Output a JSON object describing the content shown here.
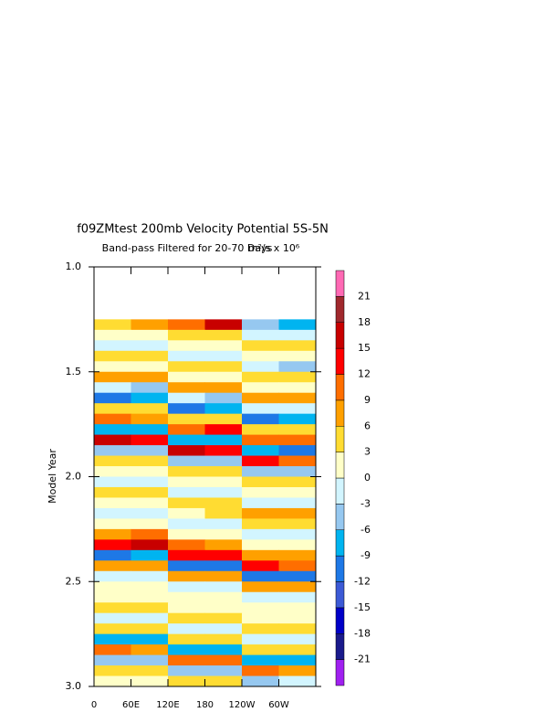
{
  "chart_data": {
    "type": "contour",
    "title": "f09ZMtest 200mb Velocity Potential 5S-5N",
    "subtitle": "Band-pass Filtered for 20-70 Days",
    "units": "m²/s x 10⁶",
    "ylabel": "Model Year",
    "xlim": [
      0,
      360
    ],
    "ylim": [
      1,
      3
    ],
    "y_inverted": true,
    "xticks": [
      0,
      {
        "value": 60,
        "label": "60E"
      },
      {
        "value": 120,
        "label": "120E"
      },
      180,
      {
        "value": 240,
        "label": "120W"
      },
      {
        "value": 300,
        "label": "60W"
      }
    ],
    "yticks": [
      {
        "value": 1,
        "label": "1.0"
      },
      {
        "value": 1.5,
        "label": "1.5"
      },
      {
        "value": 2,
        "label": "2.0"
      },
      {
        "value": 2.5,
        "label": "2.5"
      },
      {
        "value": 3,
        "label": "3.0"
      }
    ],
    "levels": [
      -21,
      -18,
      -15,
      -12,
      -9,
      -6,
      -3,
      0,
      3,
      6,
      9,
      12,
      15,
      18,
      21
    ],
    "colors": [
      "#a020f0",
      "#1a1a8c",
      "#0000c8",
      "#3c5ad6",
      "#1e78e6",
      "#00b4f0",
      "#96c8f0",
      "#d2f5ff",
      "#ffffc8",
      "#ffdc32",
      "#ffa000",
      "#ff6e00",
      "#ff0000",
      "#c80000",
      "#a0282d",
      "#ff69b4"
    ],
    "x": [
      30,
      90,
      150,
      210,
      270,
      330
    ],
    "y": [
      1.275,
      1.325,
      1.375,
      1.425,
      1.475,
      1.525,
      1.575,
      1.625,
      1.675,
      1.725,
      1.775,
      1.825,
      1.875,
      1.925,
      1.975,
      2.025,
      2.075,
      2.125,
      2.175,
      2.225,
      2.275,
      2.325,
      2.375,
      2.425,
      2.475,
      2.525,
      2.575,
      2.625,
      2.675,
      2.725,
      2.775,
      2.825,
      2.875,
      2.925,
      2.975
    ],
    "z": [
      [
        3,
        6,
        9,
        15,
        -6,
        -9
      ],
      [
        0,
        0,
        3,
        3,
        -3,
        -3
      ],
      [
        -3,
        -3,
        0,
        0,
        3,
        3
      ],
      [
        3,
        3,
        -3,
        -3,
        0,
        0
      ],
      [
        0,
        0,
        3,
        3,
        -3,
        -6
      ],
      [
        6,
        6,
        0,
        0,
        3,
        3
      ],
      [
        -3,
        -6,
        6,
        6,
        0,
        0
      ],
      [
        -12,
        -9,
        -3,
        -6,
        6,
        6
      ],
      [
        3,
        3,
        -12,
        -9,
        -3,
        -3
      ],
      [
        9,
        6,
        3,
        3,
        -12,
        -9
      ],
      [
        -9,
        -9,
        9,
        12,
        3,
        3
      ],
      [
        15,
        12,
        -9,
        -9,
        9,
        9
      ],
      [
        -6,
        -6,
        15,
        12,
        -9,
        -12
      ],
      [
        3,
        3,
        -6,
        -6,
        12,
        9
      ],
      [
        0,
        0,
        3,
        3,
        -6,
        -6
      ],
      [
        -3,
        -3,
        0,
        0,
        3,
        3
      ],
      [
        3,
        3,
        -3,
        -3,
        0,
        0
      ],
      [
        0,
        0,
        3,
        3,
        -3,
        -3
      ],
      [
        -3,
        -3,
        0,
        3,
        6,
        6
      ],
      [
        0,
        0,
        -3,
        -3,
        3,
        3
      ],
      [
        6,
        9,
        0,
        0,
        -3,
        -3
      ],
      [
        12,
        15,
        9,
        6,
        0,
        0
      ],
      [
        -12,
        -9,
        12,
        12,
        6,
        6
      ],
      [
        6,
        6,
        -12,
        -12,
        12,
        9
      ],
      [
        -3,
        -3,
        6,
        6,
        -12,
        -12
      ],
      [
        0,
        0,
        -3,
        -3,
        6,
        6
      ],
      [
        0,
        0,
        0,
        0,
        -3,
        -3
      ],
      [
        3,
        3,
        0,
        0,
        0,
        0
      ],
      [
        -3,
        -3,
        3,
        3,
        0,
        0
      ],
      [
        3,
        3,
        -3,
        -3,
        3,
        3
      ],
      [
        -9,
        -9,
        3,
        3,
        -3,
        -3
      ],
      [
        9,
        6,
        -9,
        -9,
        3,
        3
      ],
      [
        -6,
        -6,
        9,
        9,
        -9,
        -9
      ],
      [
        3,
        3,
        -6,
        -6,
        9,
        6
      ],
      [
        0,
        0,
        3,
        3,
        -6,
        -3
      ]
    ]
  }
}
